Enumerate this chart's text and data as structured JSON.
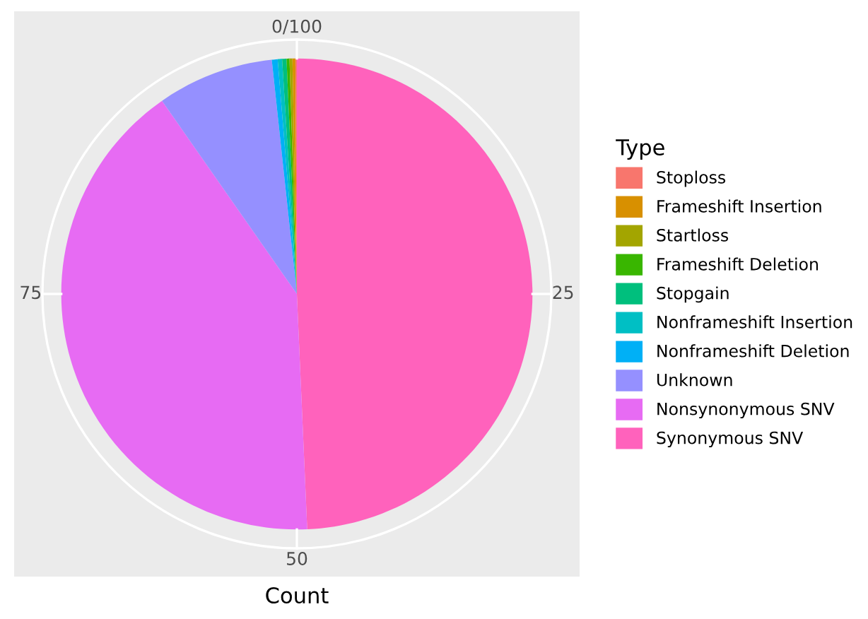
{
  "chart_data": {
    "type": "pie",
    "xlabel": "Count",
    "legend_title": "Type",
    "legend": "right",
    "categories": [
      "Stoploss",
      "Frameshift Insertion",
      "Startloss",
      "Frameshift Deletion",
      "Stopgain",
      "Nonframeshift Insertion",
      "Nonframeshift Deletion",
      "Unknown",
      "Nonsynonymous SNV",
      "Synonymous SNV"
    ],
    "values": [
      0.1,
      0.2,
      0.2,
      0.2,
      0.3,
      0.3,
      0.4,
      8.0,
      41.0,
      49.3
    ],
    "colors": [
      "#f8766d",
      "#d89000",
      "#a3a500",
      "#39b600",
      "#00bf7d",
      "#00bfc4",
      "#00b0f6",
      "#9590ff",
      "#e76bf3",
      "#ff62bc"
    ],
    "annotations": [
      "0/100",
      "25",
      "50",
      "75"
    ],
    "grid": true
  }
}
